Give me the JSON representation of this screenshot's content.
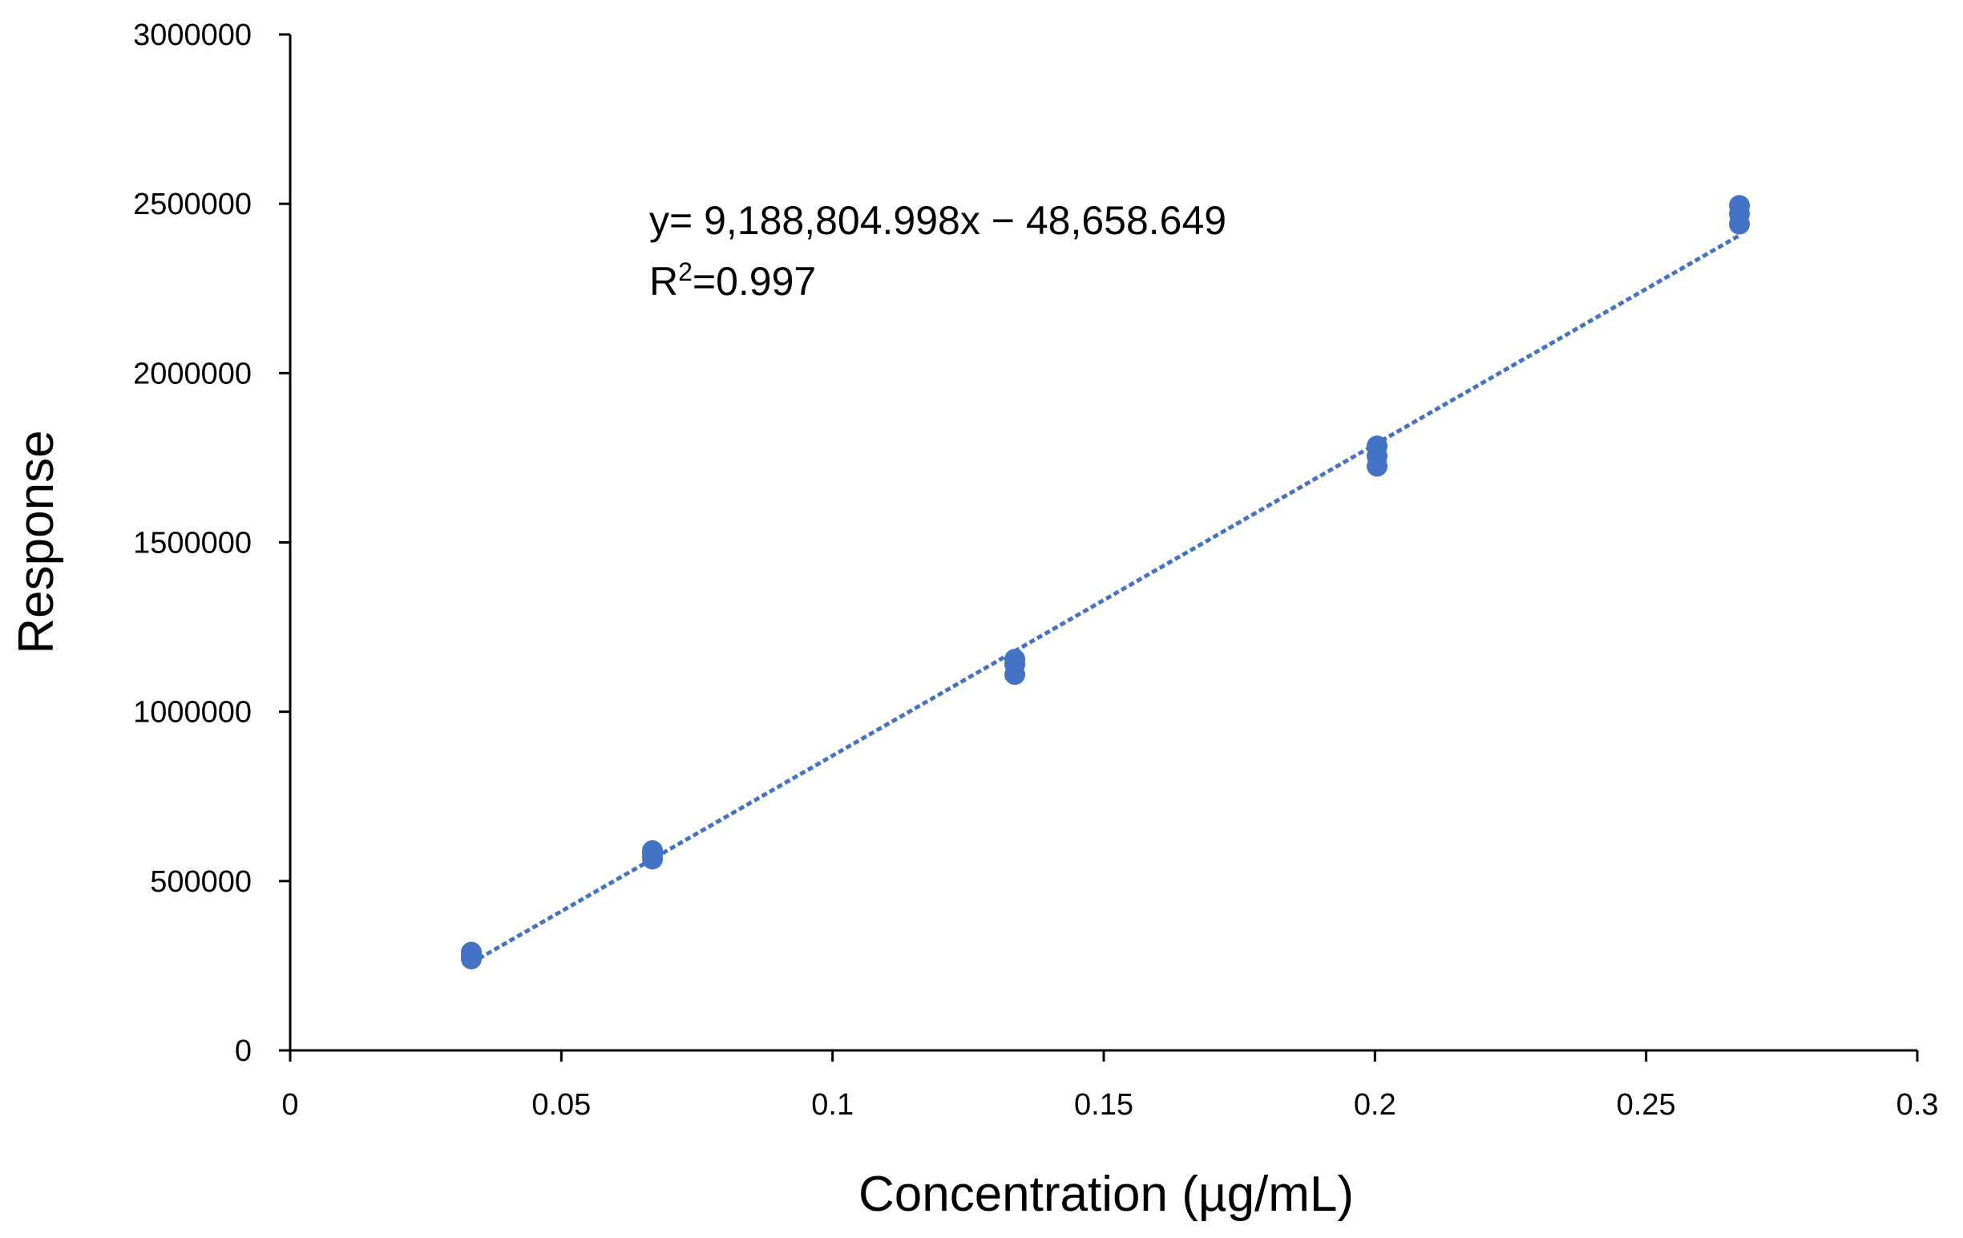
{
  "chart_data": {
    "type": "scatter",
    "title": "",
    "xlabel": "Concentration (µg/mL)",
    "ylabel": "Response",
    "xlim": [
      0,
      0.3
    ],
    "ylim": [
      0,
      3000000
    ],
    "x_ticks": [
      0,
      0.05,
      0.1,
      0.15,
      0.2,
      0.25,
      0.3
    ],
    "x_tick_labels": [
      "0",
      "0.05",
      "0.1",
      "0.15",
      "0.2",
      "0.25",
      "0.3"
    ],
    "y_ticks": [
      0,
      500000,
      1000000,
      1500000,
      2000000,
      2500000,
      3000000
    ],
    "y_tick_labels": [
      "0",
      "500000",
      "1000000",
      "1500000",
      "2000000",
      "2500000",
      "3000000"
    ],
    "grid": false,
    "legend": "none",
    "series": [
      {
        "color": "#4472C4",
        "points": [
          {
            "x": 0.0334,
            "y": 270000
          },
          {
            "x": 0.0334,
            "y": 280000
          },
          {
            "x": 0.0334,
            "y": 290000
          },
          {
            "x": 0.0668,
            "y": 565000
          },
          {
            "x": 0.0668,
            "y": 578000
          },
          {
            "x": 0.0668,
            "y": 590000
          },
          {
            "x": 0.1336,
            "y": 1110000
          },
          {
            "x": 0.1336,
            "y": 1140000
          },
          {
            "x": 0.1336,
            "y": 1155000
          },
          {
            "x": 0.2004,
            "y": 1725000
          },
          {
            "x": 0.2004,
            "y": 1755000
          },
          {
            "x": 0.2004,
            "y": 1785000
          },
          {
            "x": 0.2672,
            "y": 2440000
          },
          {
            "x": 0.2672,
            "y": 2470000
          },
          {
            "x": 0.2672,
            "y": 2495000
          }
        ]
      }
    ],
    "trendline": {
      "type": "linear",
      "slope": 9188804.998,
      "intercept": -48658.649,
      "x_range": [
        0.0334,
        0.2672
      ],
      "style": "dashed",
      "color": "#4472C4"
    },
    "annotations": {
      "equation": "y= 9,188,804.998x − 48,658.649",
      "r2_prefix": "R",
      "r2_sup": "2",
      "r2_value": "=0.997"
    }
  }
}
